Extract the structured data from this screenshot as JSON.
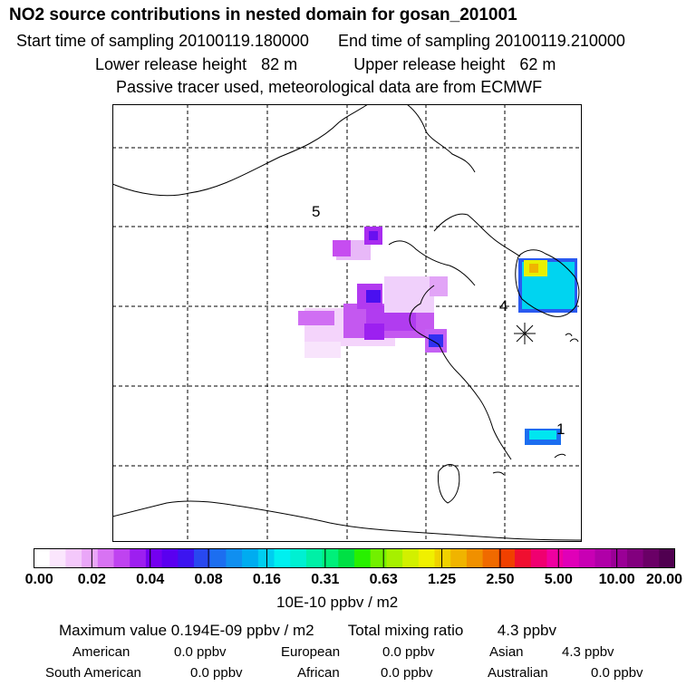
{
  "header": {
    "title": "NO2 source contributions in nested domain for gosan_201001",
    "start_label": "Start time of sampling",
    "start_value": "20100119.180000",
    "end_label": "End time of sampling",
    "end_value": "20100119.210000",
    "lower_label": "Lower release height",
    "lower_value": "82 m",
    "upper_label": "Upper release height",
    "upper_value": "62 m",
    "tracer_note": "Passive tracer used, meteorological data are from ECMWF"
  },
  "map": {
    "region_labels": [
      "5",
      "4",
      "1"
    ],
    "receptor_marker": "asterisk-icon"
  },
  "colorbar": {
    "ticks": [
      "0.00",
      "0.02",
      "0.04",
      "0.08",
      "0.16",
      "0.31",
      "0.63",
      "1.25",
      "2.50",
      "5.00",
      "10.00",
      "20.00"
    ],
    "colors": [
      "#ffffff",
      "#fbe6fd",
      "#f4c8fb",
      "#eaa6f8",
      "#d873f3",
      "#bf43f0",
      "#9d1ff0",
      "#7400f0",
      "#5a00f0",
      "#3c14f0",
      "#2848f0",
      "#1c6ef0",
      "#108ff0",
      "#00acf0",
      "#00cef0",
      "#00f0f0",
      "#00f0d2",
      "#00f0a6",
      "#00f07a",
      "#00e044",
      "#28f000",
      "#72f000",
      "#a6f000",
      "#d2f000",
      "#f0f000",
      "#f0d200",
      "#f0b400",
      "#f09000",
      "#f06a00",
      "#f04000",
      "#f00f30",
      "#f00070",
      "#f000a0",
      "#e000b8",
      "#c800b4",
      "#b000a8",
      "#9a0096",
      "#82007e",
      "#6a0066",
      "#500050"
    ],
    "units": "10E-10 ppbv / m2"
  },
  "summary": {
    "max_label": "Maximum value",
    "max_value": "0.194E-09 ppbv / m2",
    "total_label": "Total mixing ratio",
    "total_value": "4.3 ppbv",
    "american_label": "American",
    "american_value": "0.0 ppbv",
    "european_label": "European",
    "european_value": "0.0 ppbv",
    "asian_label": "Asian",
    "asian_value": "4.3 ppbv",
    "south_american_label": "South American",
    "south_american_value": "0.0 ppbv",
    "african_label": "African",
    "african_value": "0.0 ppbv",
    "australian_label": "Australian",
    "australian_value": "0.0 ppbv"
  }
}
